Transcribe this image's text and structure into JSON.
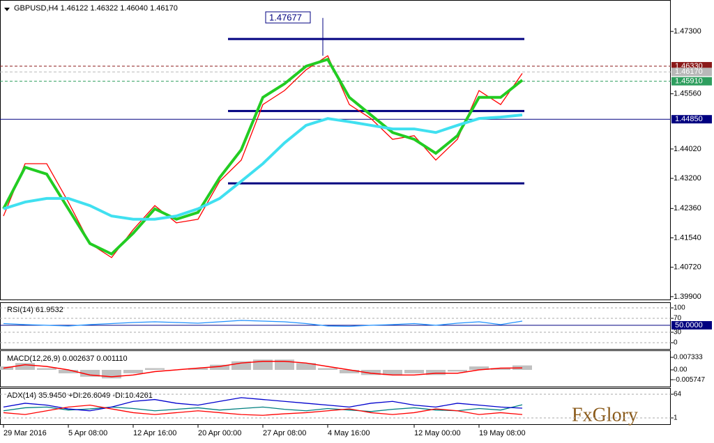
{
  "chart_data": [
    {
      "type": "line",
      "title": "GBPUSD,H4 1.46122 1.46322 1.46040 1.46170",
      "categories": [
        "29 Mar 2016",
        null,
        null,
        "5 Apr 08:00",
        null,
        null,
        "12 Apr 16:00",
        null,
        null,
        "20 Apr 00:00",
        null,
        null,
        "27 Apr 08:00",
        null,
        null,
        "4 May 16:00",
        null,
        null,
        null,
        "12 May 00:00",
        null,
        null,
        "19 May 08:00",
        null,
        null
      ],
      "series": [
        {
          "color": "#ff0000",
          "values": [
            1.4215,
            1.4361,
            1.4361,
            1.4254,
            1.4138,
            1.4099,
            1.4177,
            1.4244,
            1.4196,
            1.4206,
            1.4312,
            1.4371,
            1.4526,
            1.4565,
            1.4623,
            1.4662,
            1.4526,
            1.4487,
            1.4429,
            1.4439,
            1.4371,
            1.4429,
            1.4565,
            1.4526,
            1.4613
          ]
        },
        {
          "color": "#22cc22",
          "values": [
            1.4235,
            1.4351,
            1.4332,
            1.4235,
            1.4138,
            1.4109,
            1.4167,
            1.4235,
            1.4206,
            1.4225,
            1.4322,
            1.44,
            1.4546,
            1.4584,
            1.4633,
            1.4652,
            1.4546,
            1.4497,
            1.4448,
            1.4429,
            1.439,
            1.4439,
            1.4546,
            1.4546,
            1.4594
          ]
        },
        {
          "color": "#40e0f0",
          "values": [
            1.4235,
            1.4254,
            1.4264,
            1.4264,
            1.4244,
            1.4215,
            1.4206,
            1.4206,
            1.4215,
            1.4235,
            1.4264,
            1.4312,
            1.4361,
            1.4419,
            1.4468,
            1.4487,
            1.4478,
            1.4468,
            1.4458,
            1.4458,
            1.4448,
            1.4468,
            1.4487,
            1.4491,
            1.4497
          ]
        }
      ],
      "ylim": [
        1.3982,
        1.4808
      ],
      "yticks": [
        {
          "value": 1.473,
          "label": "1.47300"
        },
        {
          "value": 1.4556,
          "label": "1.45560"
        },
        {
          "value": 1.4402,
          "label": "1.44020"
        },
        {
          "value": 1.432,
          "label": "1.43200"
        },
        {
          "value": 1.4236,
          "label": "1.42360"
        },
        {
          "value": 1.4154,
          "label": "1.41540"
        },
        {
          "value": 1.4072,
          "label": "1.40720"
        },
        {
          "value": 1.399,
          "label": "1.39900"
        }
      ],
      "levels": [
        {
          "value": 1.4633,
          "label": "1.46330",
          "color": "#8b1a1a"
        },
        {
          "value": 1.4617,
          "label": "1.46170",
          "color": "#b8b8b8"
        },
        {
          "value": 1.4591,
          "label": "1.45910",
          "color": "#2e9e5e"
        },
        {
          "value": 1.4485,
          "label": "1.44850",
          "color": "#000080"
        }
      ],
      "high": {
        "value": 1.47677,
        "label": "1.47677"
      },
      "channel": [
        1.4709,
        1.4508,
        1.4306
      ]
    },
    {
      "type": "line",
      "title": "RSI(14) 61.9532",
      "series": [
        {
          "color": "#1e90ff",
          "values": [
            55,
            52,
            50,
            48,
            52,
            55,
            58,
            60,
            58,
            56,
            60,
            64,
            62,
            60,
            55,
            48,
            47,
            50,
            52,
            55,
            50,
            56,
            60,
            52,
            62
          ]
        }
      ],
      "ylim": [
        -16,
        110
      ],
      "yticks": [
        100,
        70,
        30,
        0
      ],
      "level": {
        "value": 50,
        "label": "50.0000"
      }
    },
    {
      "type": "macd",
      "title": "MACD(12,26,9) 0.002637 0.001110",
      "series": [
        {
          "color": "#c0c0c0",
          "values": [
            0.002,
            0.004,
            0.001,
            -0.002,
            -0.004,
            -0.005,
            -0.002,
            0.001,
            0,
            0.001,
            0.003,
            0.005,
            0.006,
            0.006,
            0.004,
            0.001,
            -0.002,
            -0.003,
            -0.003,
            -0.002,
            -0.003,
            -0.001,
            0.002,
            0.001,
            0.0026
          ]
        },
        {
          "color": "#ff0000",
          "values": [
            0.001,
            0.003,
            0.002,
            0,
            -0.003,
            -0.004,
            -0.003,
            -0.001,
            0,
            0.001,
            0.002,
            0.004,
            0.005,
            0.005,
            0.004,
            0.002,
            0,
            -0.002,
            -0.003,
            -0.003,
            -0.002,
            -0.002,
            0,
            0.001,
            0.0011
          ]
        }
      ],
      "ylim": [
        -0.00977,
        0.01059
      ],
      "yticks": [
        0.007333,
        {
          "value": 0,
          "label": "0.00"
        },
        -0.005747
      ]
    },
    {
      "type": "line",
      "title": "ADX(14) 35.9450 +DI:26.6049 -DI:10.4261",
      "series": [
        {
          "color": "#008080",
          "values": [
            20,
            28,
            30,
            22,
            25,
            30,
            26,
            20,
            24,
            28,
            22,
            26,
            30,
            24,
            20,
            26,
            22,
            18,
            24,
            28,
            22,
            20,
            26,
            22,
            36
          ]
        },
        {
          "color": "#0000cd",
          "values": [
            30,
            40,
            35,
            25,
            20,
            30,
            45,
            50,
            40,
            35,
            45,
            55,
            50,
            45,
            40,
            35,
            30,
            40,
            45,
            35,
            30,
            40,
            35,
            30,
            27
          ]
        },
        {
          "color": "#ff0000",
          "values": [
            15,
            10,
            20,
            30,
            35,
            25,
            15,
            10,
            15,
            20,
            15,
            10,
            8,
            12,
            15,
            20,
            25,
            15,
            10,
            15,
            25,
            20,
            10,
            15,
            10
          ]
        }
      ],
      "ylim": [
        -13.8,
        78.8
      ],
      "yticks": [
        64,
        1
      ]
    }
  ],
  "logo": "FxGlory"
}
